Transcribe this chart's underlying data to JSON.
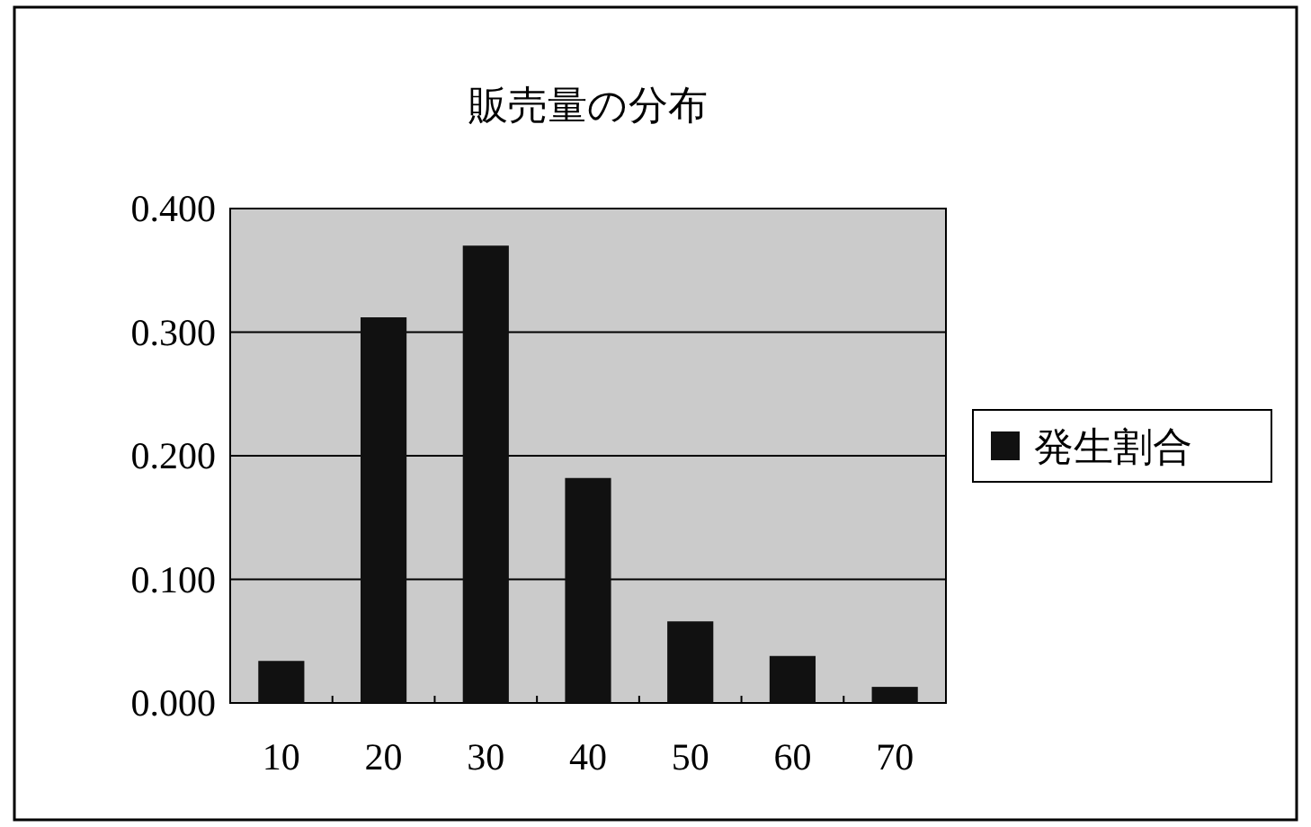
{
  "chart_data": {
    "type": "bar",
    "title": "販売量の分布",
    "categories": [
      "10",
      "20",
      "30",
      "40",
      "50",
      "60",
      "70"
    ],
    "series": [
      {
        "name": "発生割合",
        "color": "#111111",
        "values": [
          0.034,
          0.312,
          0.37,
          0.182,
          0.066,
          0.038,
          0.013
        ]
      }
    ],
    "ylim": [
      0,
      0.4
    ],
    "yticks": [
      {
        "value": 0,
        "label": "0.000"
      },
      {
        "value": 0.1,
        "label": "0.100"
      },
      {
        "value": 0.2,
        "label": "0.200"
      },
      {
        "value": 0.3,
        "label": "0.300"
      },
      {
        "value": 0.4,
        "label": "0.400"
      }
    ],
    "grid": "y",
    "legend": "right"
  }
}
